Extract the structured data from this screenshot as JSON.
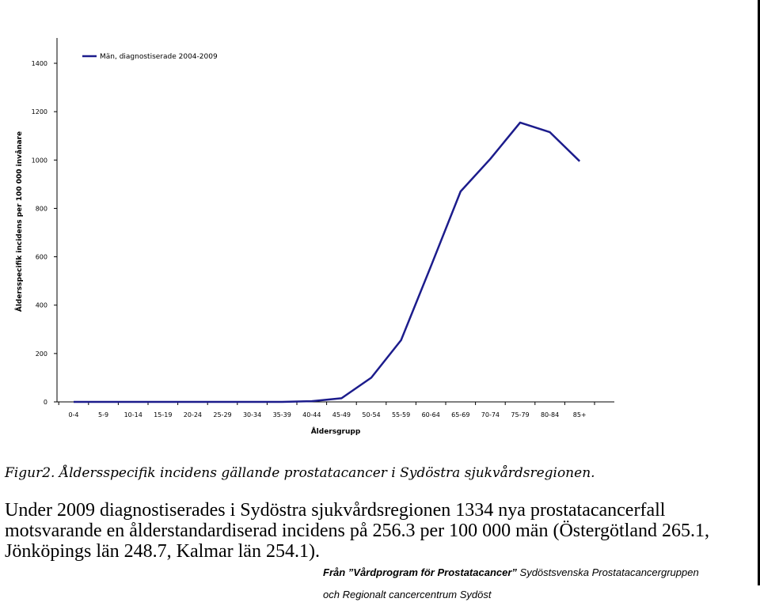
{
  "chart_data": {
    "type": "line",
    "categories": [
      "0-4",
      "5-9",
      "10-14",
      "15-19",
      "20-24",
      "25-29",
      "30-34",
      "35-39",
      "40-44",
      "45-49",
      "50-54",
      "55-59",
      "60-64",
      "65-69",
      "70-74",
      "75-79",
      "80-84",
      "85+"
    ],
    "series": [
      {
        "name": "Män, diagnostiserade 2004-2009",
        "values": [
          0,
          0,
          0,
          0,
          0,
          0,
          0,
          0,
          3,
          15,
          100,
          255,
          560,
          870,
          1005,
          1155,
          1115,
          995
        ],
        "color": "#1c1c8c"
      }
    ],
    "ylim": [
      0,
      1400
    ],
    "yticks": [
      0,
      200,
      400,
      600,
      800,
      1000,
      1200,
      1400
    ],
    "xlabel": "Åldersgrupp",
    "ylabel": "Åldersspecifik incidens per 100 000 invånare",
    "grid": false,
    "legend_position": "top-left"
  },
  "caption": "Figur2. Åldersspecifik incidens gällande prostatacancer i Sydöstra sjukvårdsregionen.",
  "body_text": "Under 2009 diagnostiserades i Sydöstra sjukvårdsregionen 1334 nya prostatacancerfall motsvarande en ålderstandardiserad incidens på 256.3 per 100 000 män (Östergötland 265.1, Jönköpings län 248.7, Kalmar län 254.1).",
  "source": {
    "bold_part": "Från ”Vårdprogram för Prostatacancer”",
    "rest_line1": " Sydöstsvenska Prostatacancergruppen",
    "line2": "och Regionalt cancercentrum Sydöst"
  }
}
